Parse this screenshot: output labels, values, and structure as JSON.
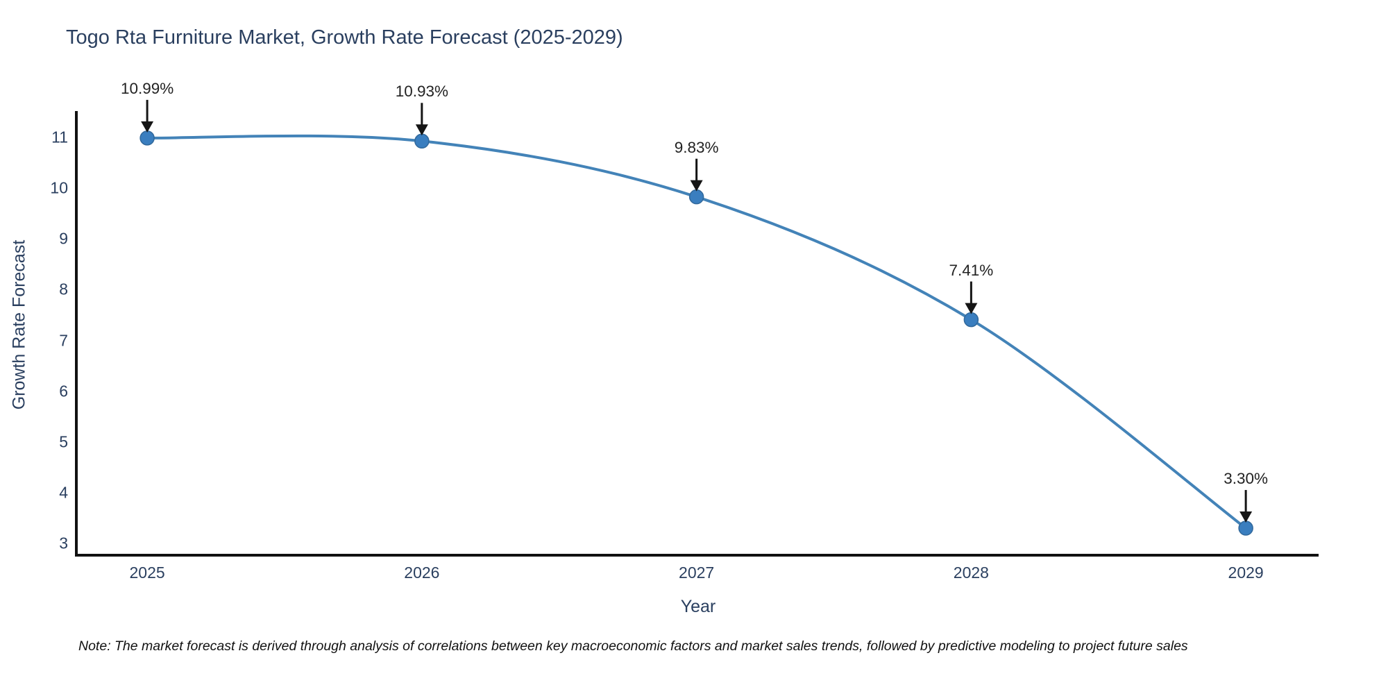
{
  "chart_data": {
    "type": "line",
    "title": "Togo Rta Furniture Market, Growth Rate Forecast (2025-2029)",
    "xlabel": "Year",
    "ylabel": "Growth Rate Forecast",
    "x": [
      2025,
      2026,
      2027,
      2028,
      2029
    ],
    "series": [
      {
        "name": "Growth Rate Forecast",
        "values": [
          10.99,
          10.93,
          9.83,
          7.41,
          3.3
        ],
        "point_labels": [
          "10.99%",
          "10.93%",
          "9.83%",
          "7.41%",
          "3.30%"
        ]
      }
    ],
    "x_ticks": [
      "2025",
      "2026",
      "2027",
      "2028",
      "2029"
    ],
    "y_ticks": [
      3,
      4,
      5,
      6,
      7,
      8,
      9,
      10,
      11
    ],
    "xlim": [
      2024.742,
      2029.265
    ],
    "ylim": [
      2.767,
      11.522
    ],
    "line_shape": "spline",
    "grid": false,
    "legend": "none",
    "annotations_have_arrows": true,
    "colors": {
      "line": "#4383b8",
      "marker_fill": "#3a7ebf",
      "marker_edge": "#31689b",
      "arrow": "#151515",
      "axis_line": "#111111",
      "axis_text": "#2a3f5f",
      "annotation_text": "#222222",
      "title_text": "#2a3f5f",
      "background": "#ffffff"
    },
    "note": "Note: The market forecast is derived through analysis of correlations between key macroeconomic factors and market sales trends, followed by predictive modeling to project future sales"
  }
}
